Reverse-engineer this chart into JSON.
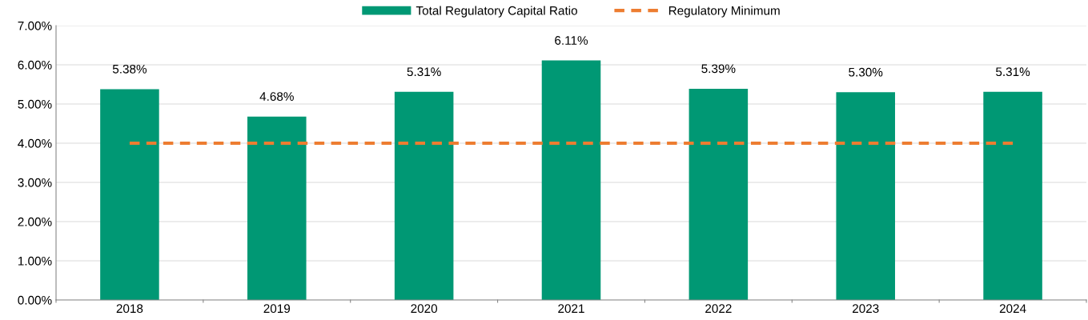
{
  "chart_data": {
    "type": "bar",
    "categories": [
      "2018",
      "2019",
      "2020",
      "2021",
      "2022",
      "2023",
      "2024"
    ],
    "series": [
      {
        "name": "Total Regulatory Capital Ratio",
        "color": "#009874",
        "values": [
          5.38,
          4.68,
          5.31,
          6.11,
          5.39,
          5.3,
          5.31
        ],
        "value_labels": [
          "5.38%",
          "4.68%",
          "5.31%",
          "6.11%",
          "5.39%",
          "5.30%",
          "5.31%"
        ]
      },
      {
        "name": "Regulatory Minimum",
        "type": "line",
        "color": "#ed7d31",
        "line_style": "dashed",
        "values": [
          4.0,
          4.0,
          4.0,
          4.0,
          4.0,
          4.0,
          4.0
        ]
      }
    ],
    "ylim": [
      0,
      7
    ],
    "yticks": [
      {
        "value": 0,
        "label": "0.00%"
      },
      {
        "value": 1,
        "label": "1.00%"
      },
      {
        "value": 2,
        "label": "2.00%"
      },
      {
        "value": 3,
        "label": "3.00%"
      },
      {
        "value": 4,
        "label": "4.00%"
      },
      {
        "value": 5,
        "label": "5.00%"
      },
      {
        "value": 6,
        "label": "6.00%"
      },
      {
        "value": 7,
        "label": "7.00%"
      }
    ],
    "grid": "y",
    "legend": "top"
  }
}
